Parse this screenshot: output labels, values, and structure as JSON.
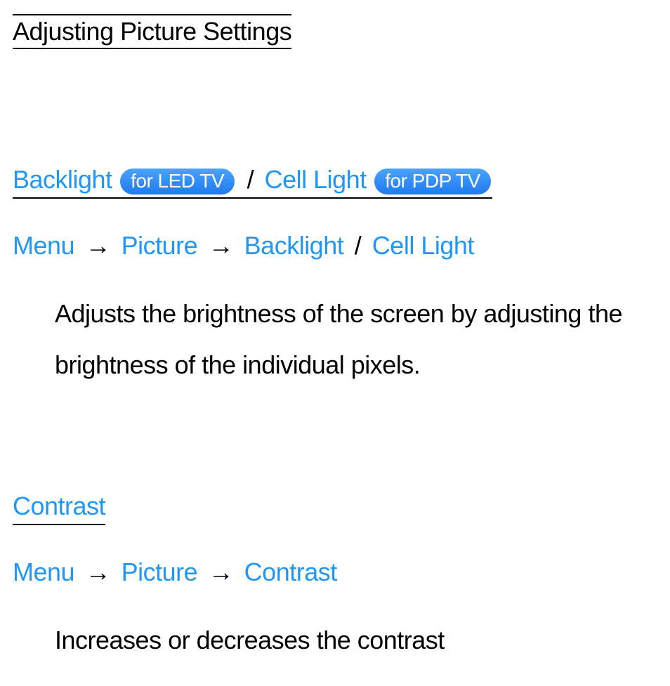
{
  "page_title": "Adjusting Picture Settings",
  "colors": {
    "link_blue": "#2196f3",
    "pill_bg_top": "#4aa3ff",
    "pill_bg_bottom": "#1e7af0",
    "pill_text": "#ffffff",
    "body_text": "#000000",
    "background": "#ffffff"
  },
  "typography": {
    "title_fontsize": 36,
    "heading_fontsize": 36,
    "pill_fontsize": 28,
    "body_fontsize": 36,
    "line_height": 2.02
  },
  "section1": {
    "heading": {
      "term1": "Backlight",
      "pill1": "for LED TV",
      "sep": " / ",
      "term2": "Cell Light",
      "pill2": "for PDP TV"
    },
    "path": {
      "p1": "Menu",
      "arrow": "→",
      "p2": "Picture",
      "p3": "Backlight",
      "sep": "/",
      "p4": "Cell Light"
    },
    "body": "Adjusts the brightness of the screen by adjusting the brightness of the individual pixels."
  },
  "section2": {
    "heading": "Contrast",
    "path": {
      "p1": "Menu",
      "arrow": "→",
      "p2": "Picture",
      "p3": "Contrast"
    },
    "body": "Increases or decreases the contrast"
  }
}
